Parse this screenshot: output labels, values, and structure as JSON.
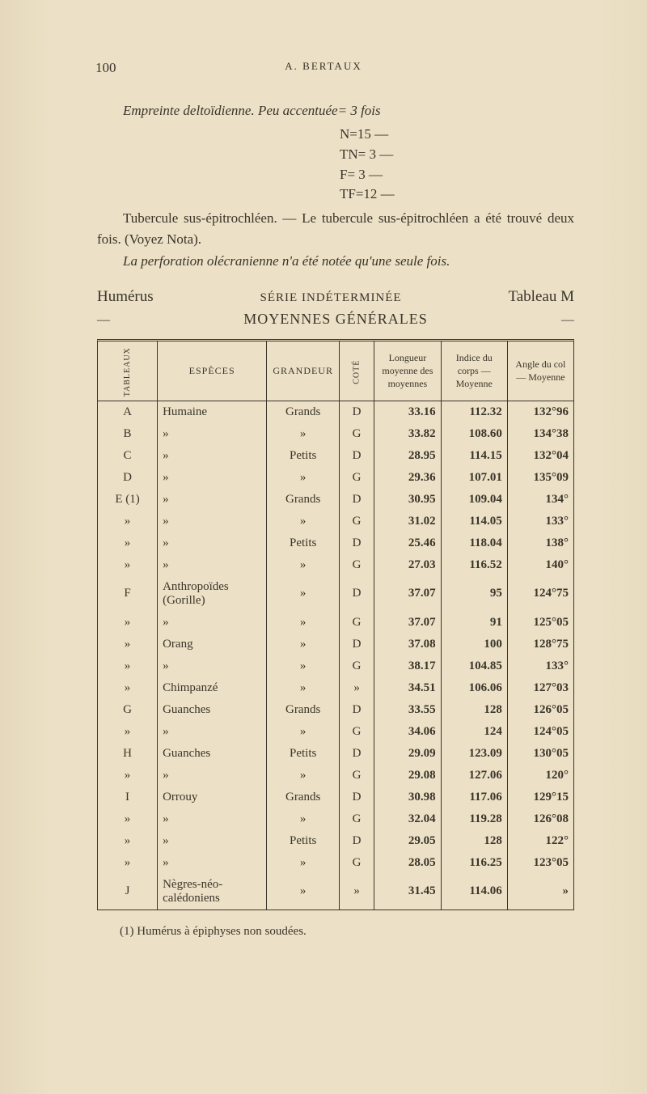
{
  "page_number": "100",
  "running_head": "A. BERTAUX",
  "para_empreinte": "Empreinte deltoïdienne.  Peu accentuée= 3 fois",
  "eq_lines": [
    "N=15  —",
    "TN= 3  —",
    "F= 3  —",
    "TF=12  —"
  ],
  "para_tubercule": "Tubercule sus-épitrochléen. — Le tubercule sus-épitrochléen a été trouvé deux fois. (Voyez Nota).",
  "para_perforation": "La perforation olécranienne n'a été notée qu'une seule fois.",
  "title_left": "Humérus",
  "title_center": "SÉRIE INDÉTERMINÉE",
  "title_right": "Tableau M",
  "subtitle_left_dash": "—",
  "subtitle_center": "MOYENNES GÉNÉRALES",
  "subtitle_right_dash": "—",
  "columns": [
    "TABLEAUX",
    "ESPÈCES",
    "GRANDEUR",
    "COTÉ",
    "Longueur moyenne des moyennes",
    "Indice du corps — Moyenne",
    "Angle du col — Moyenne"
  ],
  "rows": [
    [
      "A",
      "Humaine",
      "Grands",
      "D",
      "33.16",
      "112.32",
      "132°96"
    ],
    [
      "B",
      "»",
      "»",
      "G",
      "33.82",
      "108.60",
      "134°38"
    ],
    [
      "C",
      "»",
      "Petits",
      "D",
      "28.95",
      "114.15",
      "132°04"
    ],
    [
      "D",
      "»",
      "»",
      "G",
      "29.36",
      "107.01",
      "135°09"
    ],
    [
      "E (1)",
      "»",
      "Grands",
      "D",
      "30.95",
      "109.04",
      "134°"
    ],
    [
      "»",
      "»",
      "»",
      "G",
      "31.02",
      "114.05",
      "133°"
    ],
    [
      "»",
      "»",
      "Petits",
      "D",
      "25.46",
      "118.04",
      "138°"
    ],
    [
      "»",
      "»",
      "»",
      "G",
      "27.03",
      "116.52",
      "140°"
    ],
    [
      "F",
      "Anthropoïdes (Gorille)",
      "»",
      "D",
      "37.07",
      "95",
      "124°75"
    ],
    [
      "»",
      "»",
      "»",
      "G",
      "37.07",
      "91",
      "125°05"
    ],
    [
      "»",
      "Orang",
      "»",
      "D",
      "37.08",
      "100",
      "128°75"
    ],
    [
      "»",
      "»",
      "»",
      "G",
      "38.17",
      "104.85",
      "133°"
    ],
    [
      "»",
      "Chimpanzé",
      "»",
      "»",
      "34.51",
      "106.06",
      "127°03"
    ],
    [
      "G",
      "Guanches",
      "Grands",
      "D",
      "33.55",
      "128",
      "126°05"
    ],
    [
      "»",
      "»",
      "»",
      "G",
      "34.06",
      "124",
      "124°05"
    ],
    [
      "H",
      "Guanches",
      "Petits",
      "D",
      "29.09",
      "123.09",
      "130°05"
    ],
    [
      "»",
      "»",
      "»",
      "G",
      "29.08",
      "127.06",
      "120°"
    ],
    [
      "I",
      "Orrouy",
      "Grands",
      "D",
      "30.98",
      "117.06",
      "129°15"
    ],
    [
      "»",
      "»",
      "»",
      "G",
      "32.04",
      "119.28",
      "126°08"
    ],
    [
      "»",
      "»",
      "Petits",
      "D",
      "29.05",
      "128",
      "122°"
    ],
    [
      "»",
      "»",
      "»",
      "G",
      "28.05",
      "116.25",
      "123°05"
    ],
    [
      "J",
      "Nègres-néo-calédoniens",
      "»",
      "»",
      "31.45",
      "114.06",
      "»"
    ]
  ],
  "footnote": "(1) Humérus à épiphyses non soudées."
}
